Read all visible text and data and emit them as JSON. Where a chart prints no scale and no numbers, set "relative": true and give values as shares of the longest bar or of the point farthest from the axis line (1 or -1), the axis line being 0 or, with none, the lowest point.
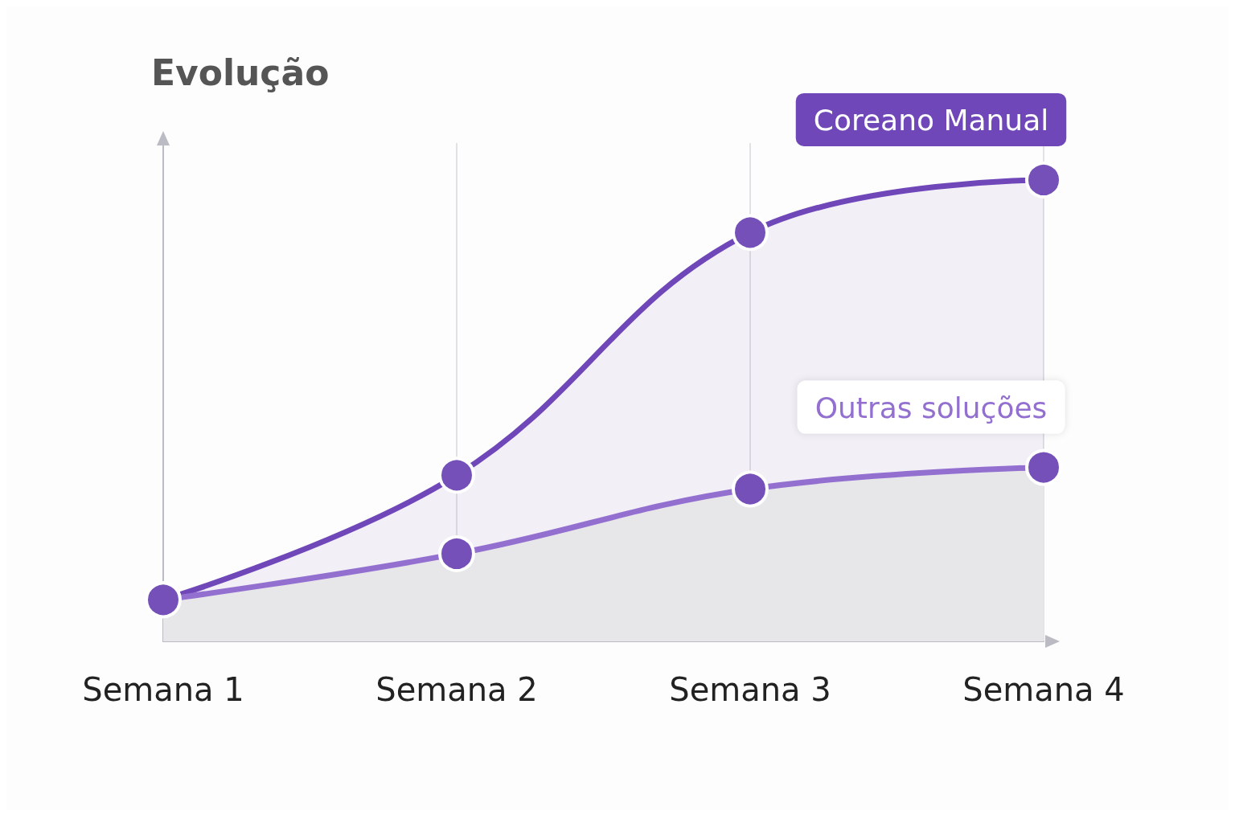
{
  "chart_data": {
    "type": "area",
    "title": "Evolução",
    "categories": [
      "Semana 1",
      "Semana 2",
      "Semana 3",
      "Semana 4"
    ],
    "relative": true,
    "grid": "x",
    "legend": false,
    "marker": "circle",
    "line_style": "solid",
    "series": [
      {
        "name": "Coreano Manual",
        "color": "#6f47b8",
        "values": [
          0.09,
          0.36,
          0.886,
          1
        ]
      },
      {
        "name": "Outras soluções",
        "color": "#9370d0",
        "values": [
          0.09,
          0.19,
          0.33,
          0.377
        ]
      }
    ]
  }
}
